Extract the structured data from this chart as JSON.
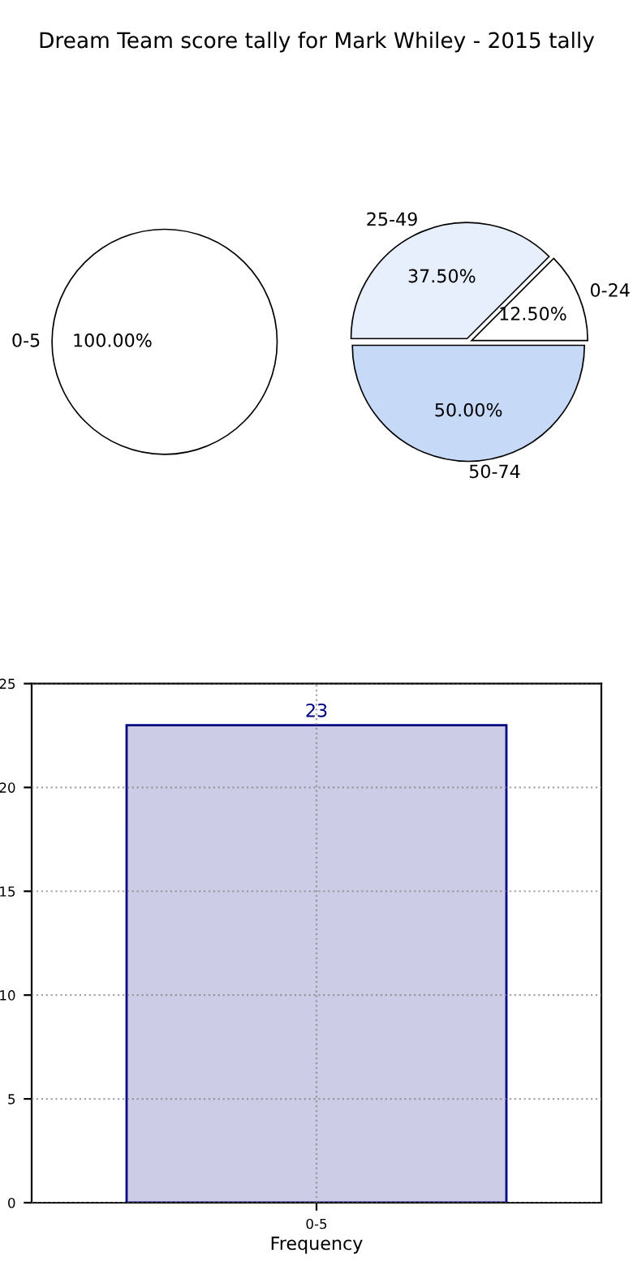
{
  "chart_data": [
    {
      "type": "pie",
      "title": "Dream Team score tally for Mark Whiley - 2015 tally",
      "categories": [
        "0-5"
      ],
      "values": [
        100
      ],
      "colors": [
        "#ffffff"
      ],
      "value_labels": [
        "100.00%"
      ]
    },
    {
      "type": "pie",
      "categories": [
        "0-24",
        "25-49",
        "50-74"
      ],
      "values": [
        12.5,
        37.5,
        50
      ],
      "colors": [
        "#ffffff",
        "#e8effc",
        "#c6d9f7"
      ],
      "value_labels": [
        "12.50%",
        "37.50%",
        "50.00%"
      ]
    },
    {
      "type": "bar",
      "categories": [
        "0-5"
      ],
      "values": [
        23
      ],
      "color": "#ccccE6",
      "xlabel": "Frequency",
      "ylim": [
        0,
        25
      ],
      "yticks": [
        0,
        5,
        10,
        15,
        20,
        25
      ],
      "grid": true,
      "data_labels": true
    }
  ]
}
